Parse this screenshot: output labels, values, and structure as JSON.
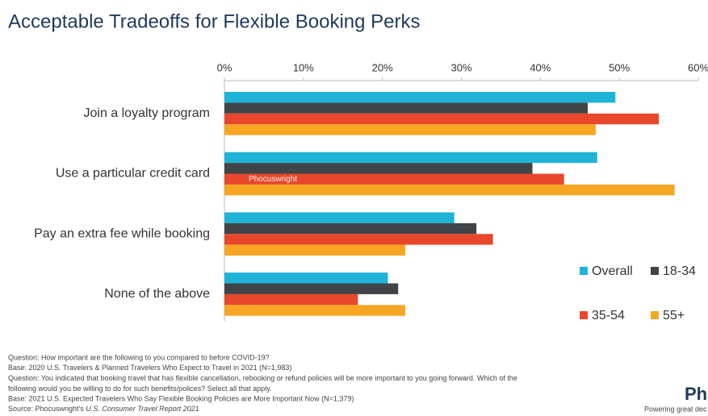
{
  "chart_data": {
    "type": "barh",
    "title": "Acceptable Tradeoffs for Flexible Booking Perks",
    "categories": [
      "Join a loyalty program",
      "Use a particular credit card",
      "Pay an extra fee while booking",
      "None of the above"
    ],
    "series": [
      {
        "name": "Overall",
        "color": "#1fb3d8",
        "values": [
          49.5,
          47.2,
          29.1,
          20.7
        ]
      },
      {
        "name": "18-34",
        "color": "#3f4448",
        "values": [
          46,
          39,
          31.9,
          22
        ]
      },
      {
        "name": "35-54",
        "color": "#e8472b",
        "values": [
          55,
          43,
          34,
          16.9
        ]
      },
      {
        "name": "55+",
        "color": "#f6a623",
        "values": [
          47,
          57,
          22.9,
          22.9
        ]
      }
    ],
    "xlim": [
      0,
      60
    ],
    "xticks": [
      {
        "value": 0,
        "label": "0%"
      },
      {
        "value": 10,
        "label": "10%"
      },
      {
        "value": 20,
        "label": "20%"
      },
      {
        "value": 30,
        "label": "30%"
      },
      {
        "value": 40,
        "label": "40%"
      },
      {
        "value": 50,
        "label": "50%"
      },
      {
        "value": 60,
        "label": "60%"
      }
    ],
    "grid": false,
    "legend": "bottom-right",
    "watermark": "Phocuswright",
    "notes": [
      "Question: How important are the following to you compared to before COVID-19?",
      "Base: 2020 U.S. Travelers & Planned Travelers Who Expect to Travel in 2021 (N=1,983)",
      "Question: You indicated that booking travel that has flexible cancellation, rebooking or refund policies will be more important to you going forward. Which of the",
      "following would you be willing to do for such benefits/polices? Select all that apply.",
      "Base: 2021 U.S. Expected Travelers Who Say Flexible Booking Policies are More Important Now (N=1,379)"
    ],
    "source": {
      "prefix": "Source: Phocuswright's ",
      "title": "U.S. Consumer Travel Report 2021"
    },
    "logo": {
      "name": "Phocusw",
      "tagline": "Powering great dec"
    }
  }
}
